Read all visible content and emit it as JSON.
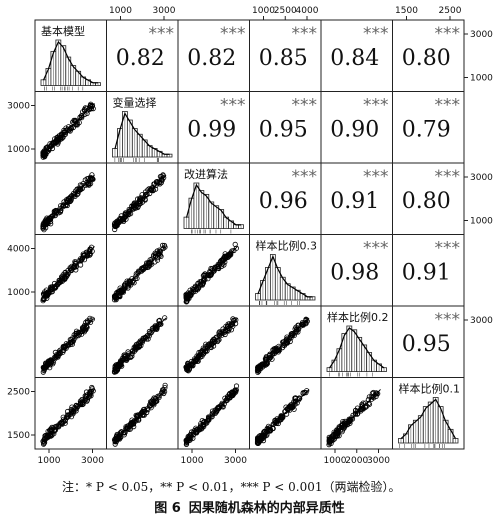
{
  "chart_data": {
    "type": "scatter-matrix",
    "variables": [
      "基本模型",
      "变量选择",
      "改进算法",
      "样本比例0.3",
      "样本比例0.2",
      "样本比例0.1"
    ],
    "correlations": [
      {
        "row": 0,
        "col": 1,
        "r": 0.82,
        "stars": "***"
      },
      {
        "row": 0,
        "col": 2,
        "r": 0.82,
        "stars": "***"
      },
      {
        "row": 0,
        "col": 3,
        "r": 0.85,
        "stars": "***"
      },
      {
        "row": 0,
        "col": 4,
        "r": 0.84,
        "stars": "***"
      },
      {
        "row": 0,
        "col": 5,
        "r": 0.8,
        "stars": "***"
      },
      {
        "row": 1,
        "col": 2,
        "r": 0.99,
        "stars": "***"
      },
      {
        "row": 1,
        "col": 3,
        "r": 0.95,
        "stars": "***"
      },
      {
        "row": 1,
        "col": 4,
        "r": 0.9,
        "stars": "***"
      },
      {
        "row": 1,
        "col": 5,
        "r": 0.79,
        "stars": "***"
      },
      {
        "row": 2,
        "col": 3,
        "r": 0.96,
        "stars": "***"
      },
      {
        "row": 2,
        "col": 4,
        "r": 0.91,
        "stars": "***"
      },
      {
        "row": 2,
        "col": 5,
        "r": 0.8,
        "stars": "***"
      },
      {
        "row": 3,
        "col": 4,
        "r": 0.98,
        "stars": "***"
      },
      {
        "row": 3,
        "col": 5,
        "r": 0.91,
        "stars": "***"
      },
      {
        "row": 4,
        "col": 5,
        "r": 0.95,
        "stars": "***"
      }
    ],
    "axis_range": [
      600,
      3800
    ],
    "top_ticks": [
      {
        "col": 1,
        "labels": [
          "1000",
          "3000"
        ]
      },
      {
        "col": 3,
        "labels": [
          "1000",
          "2500",
          "4000"
        ]
      },
      {
        "col": 5,
        "labels": [
          "1500",
          "2500"
        ]
      }
    ],
    "bottom_ticks": [
      {
        "col": 0,
        "labels": [
          "1000",
          "3000"
        ]
      },
      {
        "col": 2,
        "labels": [
          "1000",
          "3000"
        ]
      },
      {
        "col": 4,
        "labels": [
          "1000",
          "2000",
          "3000"
        ]
      }
    ],
    "left_ticks": [
      {
        "row": 1,
        "labels": [
          "3000",
          "1000"
        ]
      },
      {
        "row": 3,
        "labels": [
          "4000",
          "1000"
        ]
      },
      {
        "row": 5,
        "labels": [
          "2500",
          "1500"
        ]
      }
    ],
    "right_ticks": [
      {
        "row": 0,
        "labels": [
          "3000",
          "1000"
        ]
      },
      {
        "row": 2,
        "labels": [
          "3000",
          "1000"
        ]
      },
      {
        "row": 4,
        "labels": [
          "3000"
        ]
      }
    ],
    "histograms": [
      [
        2,
        6,
        12,
        16,
        14,
        10,
        7,
        5,
        3,
        2,
        1,
        1
      ],
      [
        3,
        10,
        16,
        13,
        10,
        8,
        6,
        4,
        3,
        2,
        1,
        1
      ],
      [
        3,
        8,
        12,
        10,
        9,
        7,
        6,
        5,
        3,
        2,
        1,
        1
      ],
      [
        2,
        6,
        10,
        14,
        10,
        7,
        5,
        4,
        3,
        2,
        1,
        1
      ],
      [
        1,
        3,
        6,
        10,
        12,
        11,
        9,
        7,
        5,
        3,
        2,
        1
      ],
      [
        1,
        2,
        4,
        5,
        6,
        8,
        9,
        10,
        8,
        5,
        3,
        1
      ]
    ]
  },
  "note": "注：* P < 0.05，** P < 0.01，*** P < 0.001（两端检验）。",
  "caption": {
    "number": "图 6",
    "title": "因果随机森林的内部异质性"
  }
}
